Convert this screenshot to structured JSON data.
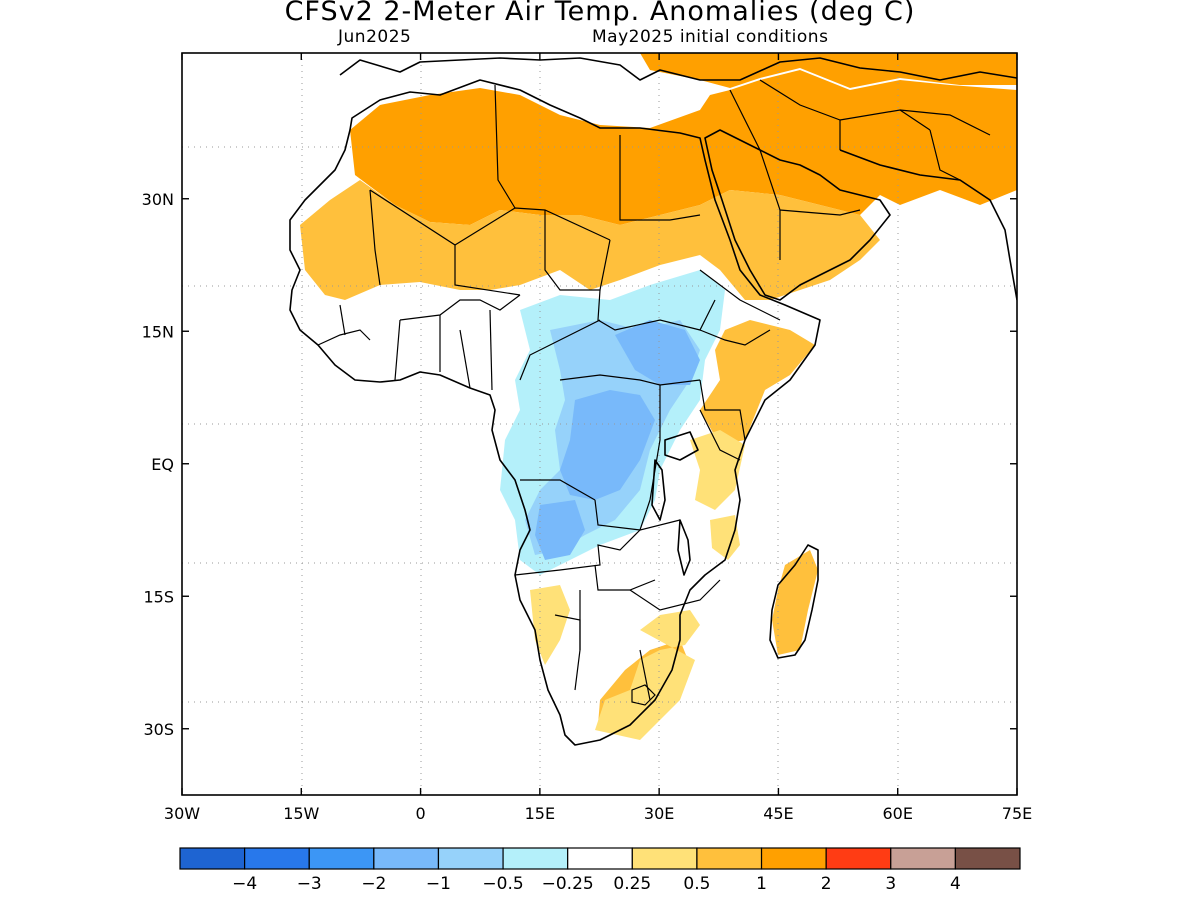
{
  "title": "CFSv2 2-Meter Air Temp. Anomalies (deg C)",
  "subtitle_left": "Jun2025",
  "subtitle_right": "May2025 initial conditions",
  "map": {
    "lon_range": [
      -30,
      75
    ],
    "lat_range": [
      -37.5,
      46.5
    ],
    "x_ticks": [
      {
        "value": -30,
        "label": "30W"
      },
      {
        "value": -15,
        "label": "15W"
      },
      {
        "value": 0,
        "label": "0"
      },
      {
        "value": 15,
        "label": "15E"
      },
      {
        "value": 30,
        "label": "30E"
      },
      {
        "value": 45,
        "label": "45E"
      },
      {
        "value": 60,
        "label": "60E"
      },
      {
        "value": 75,
        "label": "75E"
      }
    ],
    "y_ticks": [
      {
        "value": 30,
        "label": "30N"
      },
      {
        "value": 15,
        "label": "15N"
      },
      {
        "value": 0,
        "label": "EQ"
      },
      {
        "value": -15,
        "label": "15S"
      },
      {
        "value": -30,
        "label": "30S"
      }
    ],
    "grid": "dotted"
  },
  "colorbar": {
    "colors": [
      "#1e64d2",
      "#2878eb",
      "#3c96f5",
      "#78b9fa",
      "#96d2fa",
      "#b4f0fa",
      "#ffffff",
      "#ffe178",
      "#ffc03c",
      "#ffa000",
      "#ff3c14",
      "#c8a096",
      "#785046"
    ],
    "labels": [
      "−4",
      "−3",
      "−2",
      "−1",
      "−0.5",
      "−0.25",
      "0.25",
      "0.5",
      "1",
      "2",
      "3",
      "4"
    ]
  }
}
